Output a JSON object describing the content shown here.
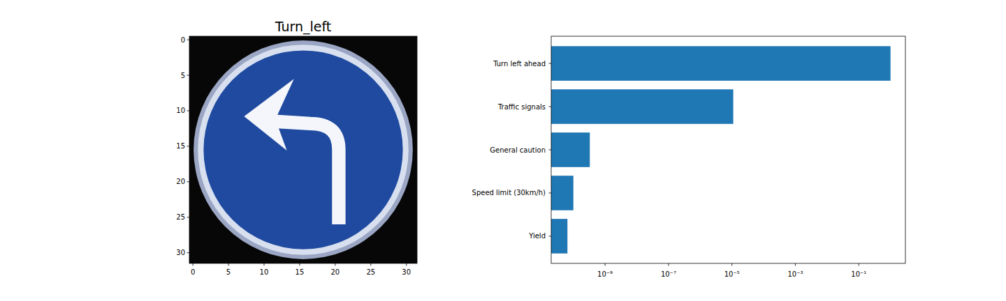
{
  "chart_data": [
    {
      "type": "image",
      "title": "Turn_left",
      "xlim": [
        -0.5,
        31.5
      ],
      "ylim": [
        31.5,
        -0.5
      ],
      "xticks": [
        0,
        5,
        10,
        15,
        20,
        25,
        30
      ],
      "yticks": [
        0,
        5,
        10,
        15,
        20,
        25,
        30
      ]
    },
    {
      "type": "bar",
      "orientation": "horizontal",
      "log": "x",
      "color": "#1f77b4",
      "categories": [
        "Turn left ahead",
        "Traffic signals",
        "General caution",
        "Speed limit (30km/h)",
        "Yield"
      ],
      "values": [
        0.99999,
        1.1e-05,
        3.3e-10,
        1e-10,
        6.5e-11
      ],
      "xlim": [
        2e-11,
        2.95
      ],
      "xticks": [
        {
          "value": 1e-09,
          "label": "10⁻⁹"
        },
        {
          "value": 1e-07,
          "label": "10⁻⁷"
        },
        {
          "value": 1e-05,
          "label": "10⁻⁵"
        },
        {
          "value": 0.001,
          "label": "10⁻³"
        },
        {
          "value": 0.1,
          "label": "10⁻¹"
        }
      ]
    }
  ]
}
